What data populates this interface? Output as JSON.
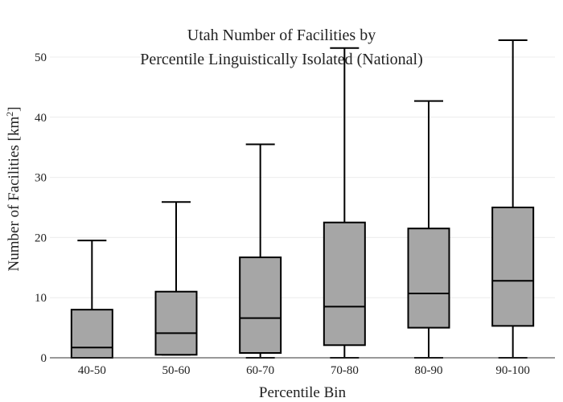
{
  "chart_data": {
    "type": "box",
    "title_lines": [
      "Utah Number of Facilities by",
      "Percentile Linguistically Isolated (National)"
    ],
    "xlabel": "Percentile Bin",
    "ylabel": "Number of Facilities  [km",
    "ylabel_superscript": "2",
    "ylabel_close": "]",
    "ylim": [
      0,
      54
    ],
    "yticks": [
      0,
      10,
      20,
      30,
      40,
      50
    ],
    "grid": true,
    "box_color": "#a6a6a6",
    "categories": [
      "40-50",
      "50-60",
      "60-70",
      "70-80",
      "80-90",
      "90-100"
    ],
    "boxes": [
      {
        "category": "40-50",
        "min": 0,
        "q1": 0,
        "median": 1.7,
        "q3": 8.0,
        "max": 19.5
      },
      {
        "category": "50-60",
        "min": 0.5,
        "q1": 0.5,
        "median": 4.1,
        "q3": 11.0,
        "max": 25.9
      },
      {
        "category": "60-70",
        "min": 0,
        "q1": 0.8,
        "median": 6.6,
        "q3": 16.7,
        "max": 35.5
      },
      {
        "category": "70-80",
        "min": 0,
        "q1": 2.1,
        "median": 8.5,
        "q3": 22.5,
        "max": 51.5
      },
      {
        "category": "80-90",
        "min": 0,
        "q1": 5.0,
        "median": 10.7,
        "q3": 21.5,
        "max": 42.7
      },
      {
        "category": "90-100",
        "min": 0,
        "q1": 5.3,
        "median": 12.8,
        "q3": 25.0,
        "max": 52.8
      }
    ]
  }
}
